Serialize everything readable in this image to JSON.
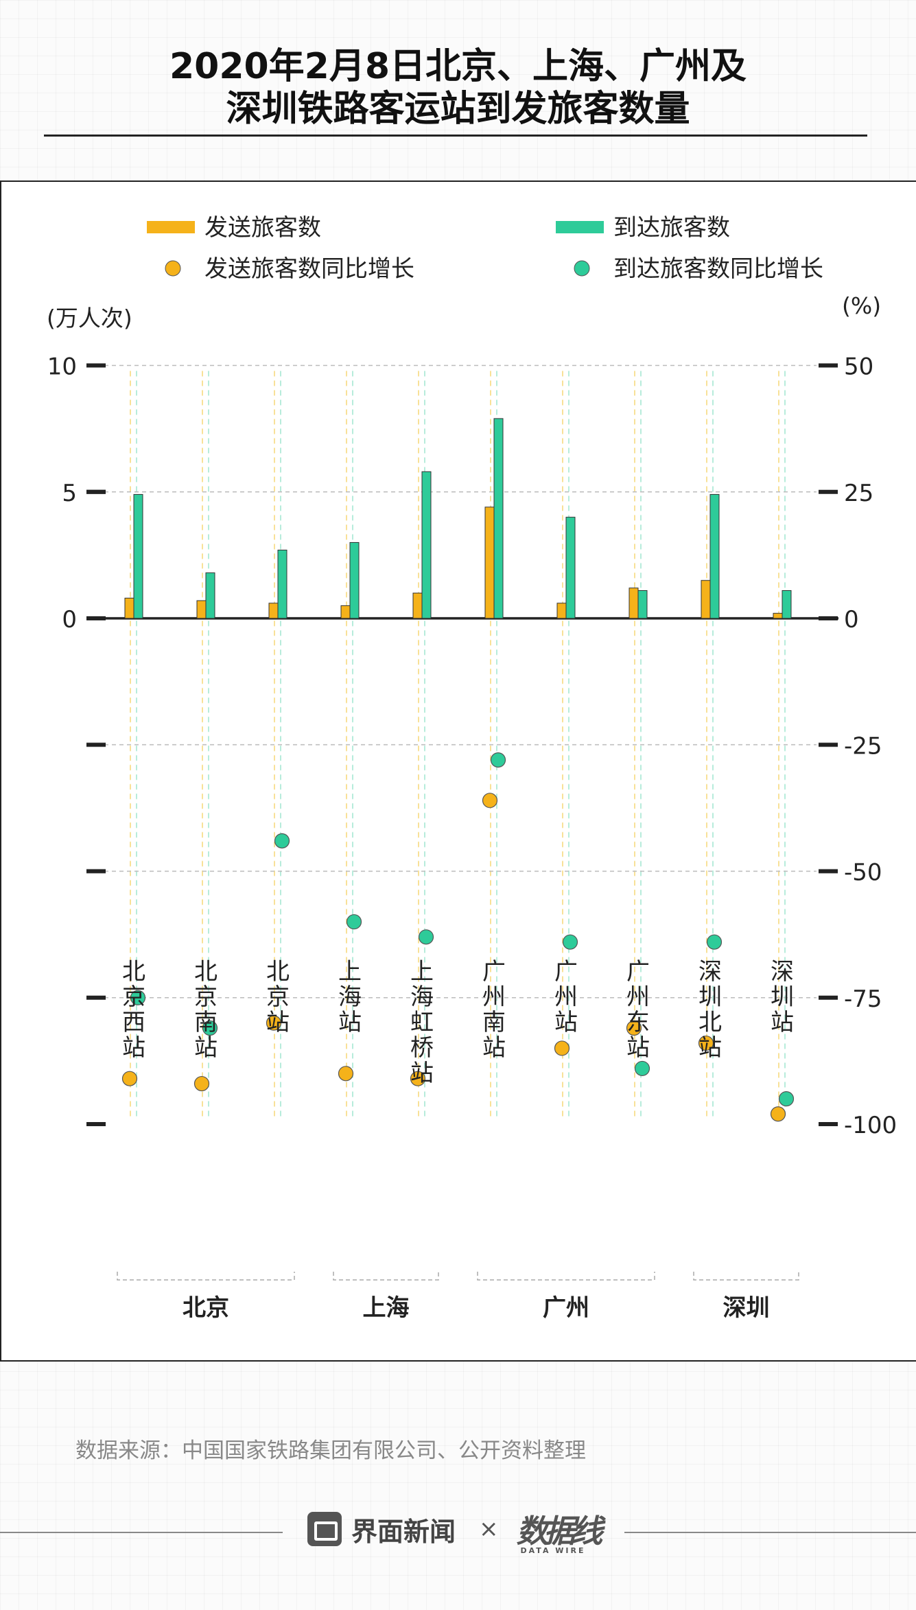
{
  "title_lines": [
    "2020年2月8日北京、上海、广州及",
    "深圳铁路客运站到发旅客数量"
  ],
  "source": "数据来源：中国国家铁路集团有限公司、公开资料整理",
  "footer": {
    "brand": "界面新闻",
    "times": "×",
    "partner": "数据线",
    "partner_sub": "DATA WIRE"
  },
  "colors": {
    "departure": "#f5b21a",
    "arrival": "#2ecb99",
    "axis": "#222222",
    "grid": "#bbbbbb"
  },
  "chart_data": {
    "type": "bar+scatter",
    "left_axis": {
      "label": "(万人次)",
      "range": [
        0,
        10
      ],
      "ticks": [
        "10",
        "5",
        "0"
      ]
    },
    "right_axis": {
      "label": "(%)",
      "range": [
        -100,
        50
      ],
      "ticks": [
        "50",
        "25",
        "0",
        "-25",
        "-50",
        "-75",
        "-100"
      ]
    },
    "legend": [
      {
        "name": "发送旅客数",
        "kind": "bar",
        "color": "#f5b21a"
      },
      {
        "name": "到达旅客数",
        "kind": "bar",
        "color": "#2ecb99"
      },
      {
        "name": "发送旅客数同比增长",
        "kind": "dot",
        "color": "#f5b21a"
      },
      {
        "name": "到达旅客数同比增长",
        "kind": "dot",
        "color": "#2ecb99"
      }
    ],
    "categories": [
      "北京西站",
      "北京南站",
      "北京站",
      "上海站",
      "上海虹桥站",
      "广州南站",
      "广州站",
      "广州东站",
      "深圳北站",
      "深圳站"
    ],
    "series": [
      {
        "name": "发送旅客数",
        "axis": "left",
        "values": [
          0.8,
          0.7,
          0.6,
          0.5,
          1.0,
          4.4,
          0.6,
          1.2,
          1.5,
          0.2
        ]
      },
      {
        "name": "到达旅客数",
        "axis": "left",
        "values": [
          4.9,
          1.8,
          2.7,
          3.0,
          5.8,
          7.9,
          4.0,
          1.1,
          4.9,
          1.1
        ]
      },
      {
        "name": "发送旅客数同比增长",
        "axis": "right",
        "values": [
          -91,
          -92,
          -80,
          -90,
          -91,
          -36,
          -85,
          -81,
          -84,
          -98
        ]
      },
      {
        "name": "到达旅客数同比增长",
        "axis": "right",
        "values": [
          -75,
          -81,
          -44,
          -60,
          -63,
          -28,
          -64,
          -89,
          -64,
          -95
        ]
      }
    ],
    "groups": [
      {
        "name": "北京",
        "from": 0,
        "to": 2
      },
      {
        "name": "上海",
        "from": 3,
        "to": 4
      },
      {
        "name": "广州",
        "from": 5,
        "to": 7
      },
      {
        "name": "深圳",
        "from": 8,
        "to": 9
      }
    ]
  }
}
